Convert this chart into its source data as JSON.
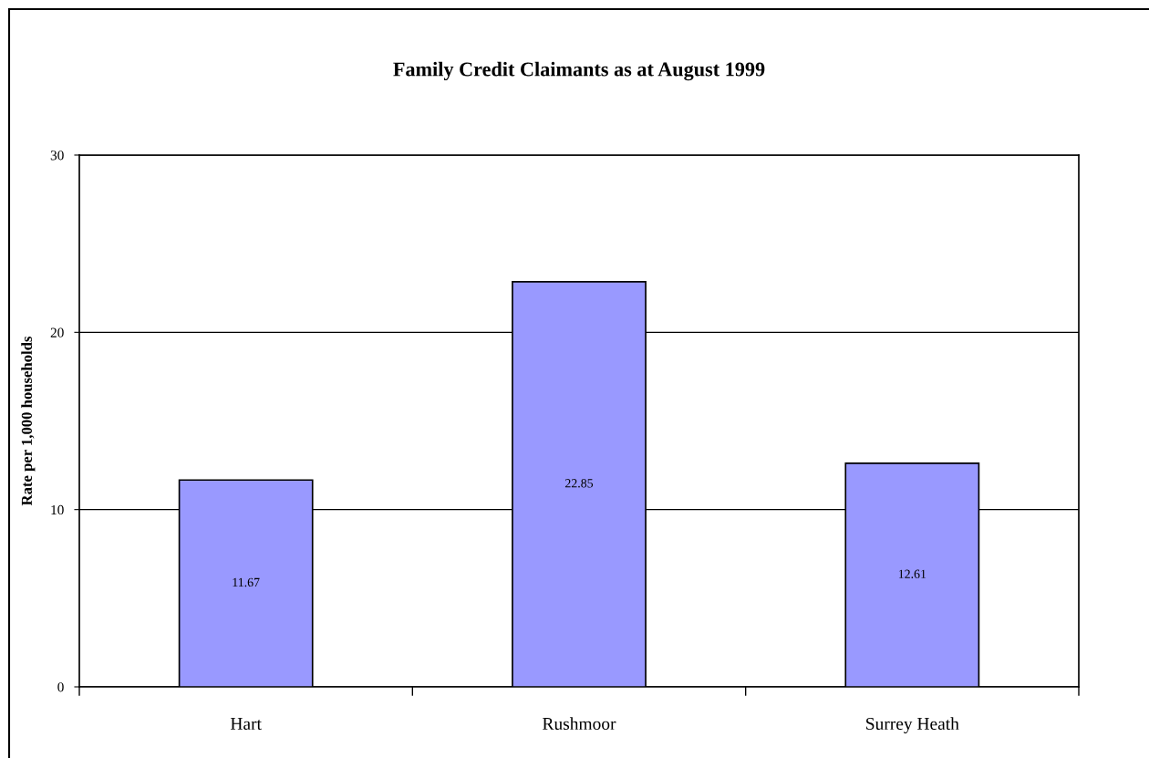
{
  "chart_data": {
    "type": "bar",
    "title": "Family Credit Claimants as at August 1999",
    "ylabel": "Rate per 1,000 households",
    "categories": [
      "Hart",
      "Rushmoor",
      "Surrey Heath"
    ],
    "values": [
      11.67,
      22.85,
      12.61
    ],
    "color": "#9999ff",
    "ylim": [
      0,
      30
    ],
    "yticks": [
      0,
      10,
      20,
      30
    ],
    "grid": "y",
    "data_labels": true,
    "legend": false
  }
}
